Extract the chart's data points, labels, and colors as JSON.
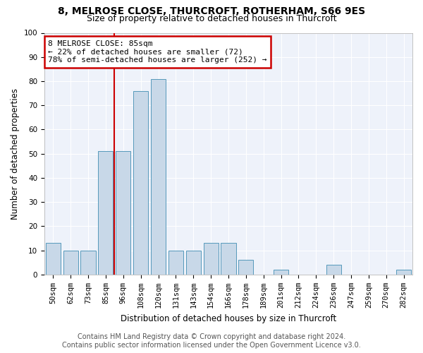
{
  "title1": "8, MELROSE CLOSE, THURCROFT, ROTHERHAM, S66 9ES",
  "title2": "Size of property relative to detached houses in Thurcroft",
  "xlabel": "Distribution of detached houses by size in Thurcroft",
  "ylabel": "Number of detached properties",
  "footer1": "Contains HM Land Registry data © Crown copyright and database right 2024.",
  "footer2": "Contains public sector information licensed under the Open Government Licence v3.0.",
  "annotation_line1": "8 MELROSE CLOSE: 85sqm",
  "annotation_line2": "← 22% of detached houses are smaller (72)",
  "annotation_line3": "78% of semi-detached houses are larger (252) →",
  "property_size_bin_index": 3,
  "categories": [
    "50sqm",
    "62sqm",
    "73sqm",
    "85sqm",
    "96sqm",
    "108sqm",
    "120sqm",
    "131sqm",
    "143sqm",
    "154sqm",
    "166sqm",
    "178sqm",
    "189sqm",
    "201sqm",
    "212sqm",
    "224sqm",
    "236sqm",
    "247sqm",
    "259sqm",
    "270sqm",
    "282sqm"
  ],
  "values": [
    13,
    10,
    10,
    51,
    51,
    76,
    81,
    10,
    10,
    13,
    13,
    6,
    0,
    2,
    0,
    0,
    4,
    0,
    0,
    0,
    2
  ],
  "bar_color": "#c8d8e8",
  "bar_edge_color": "#5599bb",
  "red_line_color": "#cc0000",
  "annotation_box_color": "#cc0000",
  "background_color": "#eef2fa",
  "ylim": [
    0,
    100
  ],
  "yticks": [
    0,
    10,
    20,
    30,
    40,
    50,
    60,
    70,
    80,
    90,
    100
  ],
  "title_fontsize": 10,
  "subtitle_fontsize": 9,
  "axis_label_fontsize": 8.5,
  "tick_fontsize": 7.5,
  "annotation_fontsize": 8,
  "footer_fontsize": 7
}
